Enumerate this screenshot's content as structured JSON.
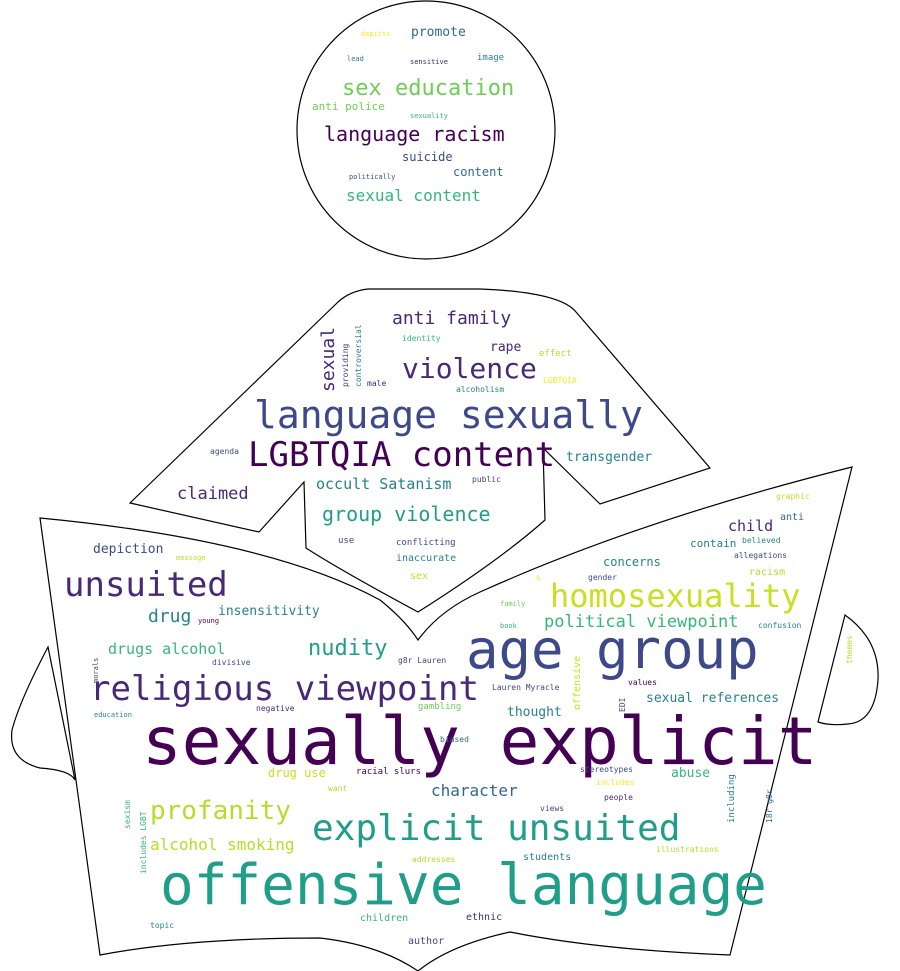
{
  "palette": {
    "background": "#ffffff",
    "outline": "#000000",
    "viridis": [
      "#440154",
      "#482878",
      "#3e4989",
      "#31688e",
      "#26828e",
      "#1f9e89",
      "#35b779",
      "#6ece58",
      "#b5de2b",
      "#fde725"
    ]
  },
  "words": [
    {
      "text": "sexually explicit",
      "color": "#440154"
    },
    {
      "text": "offensive language",
      "color": "#1f9e89"
    },
    {
      "text": "age group",
      "color": "#3e4989"
    },
    {
      "text": "language sexually",
      "color": "#3e4989"
    },
    {
      "text": "LGBTQIA content",
      "color": "#440154"
    },
    {
      "text": "religious viewpoint",
      "color": "#482878"
    },
    {
      "text": "explicit unsuited",
      "color": "#1f9e89"
    },
    {
      "text": "homosexuality",
      "color": "#c8e020"
    },
    {
      "text": "unsuited",
      "color": "#482878"
    },
    {
      "text": "violence",
      "color": "#482878"
    },
    {
      "text": "profanity",
      "color": "#b5de2b"
    },
    {
      "text": "sex education",
      "color": "#6ece58"
    },
    {
      "text": "language racism",
      "color": "#440154"
    },
    {
      "text": "nudity",
      "color": "#1f9e89"
    },
    {
      "text": "group violence",
      "color": "#1f9e89"
    },
    {
      "text": "political viewpoint",
      "color": "#35b779"
    },
    {
      "text": "anti family",
      "color": "#482878"
    },
    {
      "text": "alcohol smoking",
      "color": "#b5de2b"
    },
    {
      "text": "character",
      "color": "#31688e"
    },
    {
      "text": "sexual content",
      "color": "#35b779"
    },
    {
      "text": "drugs alcohol",
      "color": "#35b779"
    },
    {
      "text": "drug",
      "color": "#26828e"
    },
    {
      "text": "claimed",
      "color": "#482878"
    },
    {
      "text": "occult Satanism",
      "color": "#26828e"
    },
    {
      "text": "sexual",
      "color": "#482878"
    },
    {
      "text": "sexual references",
      "color": "#26828e"
    },
    {
      "text": "transgender",
      "color": "#26828e"
    },
    {
      "text": "insensitivity",
      "color": "#26828e"
    },
    {
      "text": "thought",
      "color": "#26828e"
    },
    {
      "text": "child",
      "color": "#482878"
    },
    {
      "text": "depiction",
      "color": "#3e4989"
    },
    {
      "text": "concerns",
      "color": "#26828e"
    },
    {
      "text": "abuse",
      "color": "#35b779"
    },
    {
      "text": "drug use",
      "color": "#c8e020"
    },
    {
      "text": "promote",
      "color": "#31688e"
    },
    {
      "text": "suicide",
      "color": "#3e4989"
    },
    {
      "text": "content",
      "color": "#31688e"
    },
    {
      "text": "rape",
      "color": "#482878"
    },
    {
      "text": "contain",
      "color": "#26828e"
    },
    {
      "text": "anti police",
      "color": "#6ece58"
    },
    {
      "text": "racism",
      "color": "#b5de2b"
    },
    {
      "text": "anti",
      "color": "#31688e"
    },
    {
      "text": "students",
      "color": "#26828e"
    },
    {
      "text": "author",
      "color": "#3e4989"
    },
    {
      "text": "children",
      "color": "#35b779"
    },
    {
      "text": "ethnic",
      "color": "#482878"
    },
    {
      "text": "racial slurs",
      "color": "#440154"
    },
    {
      "text": "gambling",
      "color": "#6ece58"
    },
    {
      "text": "biased",
      "color": "#31688e"
    },
    {
      "text": "offensive",
      "color": "#c8e020"
    },
    {
      "text": "stereotypes",
      "color": "#3e4989"
    },
    {
      "text": "people",
      "color": "#482878"
    },
    {
      "text": "includes",
      "color": "#fde725"
    },
    {
      "text": "including",
      "color": "#26828e"
    },
    {
      "text": "18r g8r",
      "color": "#31688e"
    },
    {
      "text": "views",
      "color": "#3e4989"
    },
    {
      "text": "want",
      "color": "#b5de2b"
    },
    {
      "text": "addresses",
      "color": "#b5de2b"
    },
    {
      "text": "illustrations",
      "color": "#b5de2b"
    },
    {
      "text": "sex",
      "color": "#c8e020"
    },
    {
      "text": "inaccurate",
      "color": "#26828e"
    },
    {
      "text": "conflicting",
      "color": "#3e4989"
    },
    {
      "text": "use",
      "color": "#3e4989"
    },
    {
      "text": "public",
      "color": "#3e4989"
    },
    {
      "text": "agenda",
      "color": "#3e4989"
    },
    {
      "text": "male",
      "color": "#482878"
    },
    {
      "text": "providing",
      "color": "#3e4989"
    },
    {
      "text": "controversial",
      "color": "#26828e"
    },
    {
      "text": "identity",
      "color": "#35b779"
    },
    {
      "text": "alcoholism",
      "color": "#26828e"
    },
    {
      "text": "effect",
      "color": "#b5de2b"
    },
    {
      "text": "LGBTQIA",
      "color": "#fde725"
    },
    {
      "text": "graphic",
      "color": "#c8e020"
    },
    {
      "text": "believed",
      "color": "#26828e"
    },
    {
      "text": "allegations",
      "color": "#3e4989"
    },
    {
      "text": "gender",
      "color": "#3e4989"
    },
    {
      "text": "family",
      "color": "#6ece58"
    },
    {
      "text": "book",
      "color": "#35b779"
    },
    {
      "text": "confusion",
      "color": "#26828e"
    },
    {
      "text": "values",
      "color": "#440154"
    },
    {
      "text": "EDI",
      "color": "#3e4989"
    },
    {
      "text": "Lauren Myracle",
      "color": "#3e4989"
    },
    {
      "text": "g8r Lauren",
      "color": "#3e4989"
    },
    {
      "text": "message",
      "color": "#b5de2b"
    },
    {
      "text": "young",
      "color": "#440154"
    },
    {
      "text": "divisive",
      "color": "#3e4989"
    },
    {
      "text": "morals",
      "color": "#3e4989"
    },
    {
      "text": "negative",
      "color": "#482878"
    },
    {
      "text": "education",
      "color": "#26828e"
    },
    {
      "text": "sexism",
      "color": "#35b779"
    },
    {
      "text": "includes LGBT",
      "color": "#35b779"
    },
    {
      "text": "topic",
      "color": "#26828e"
    },
    {
      "text": "themes",
      "color": "#b5de2b"
    },
    {
      "text": "s",
      "color": "#fde725"
    },
    {
      "text": "depicts",
      "color": "#fde725"
    },
    {
      "text": "lead",
      "color": "#26828e"
    },
    {
      "text": "sensitive",
      "color": "#482878"
    },
    {
      "text": "image",
      "color": "#26828e"
    },
    {
      "text": "sexuality",
      "color": "#35b779"
    },
    {
      "text": "politically",
      "color": "#3e4989"
    }
  ]
}
